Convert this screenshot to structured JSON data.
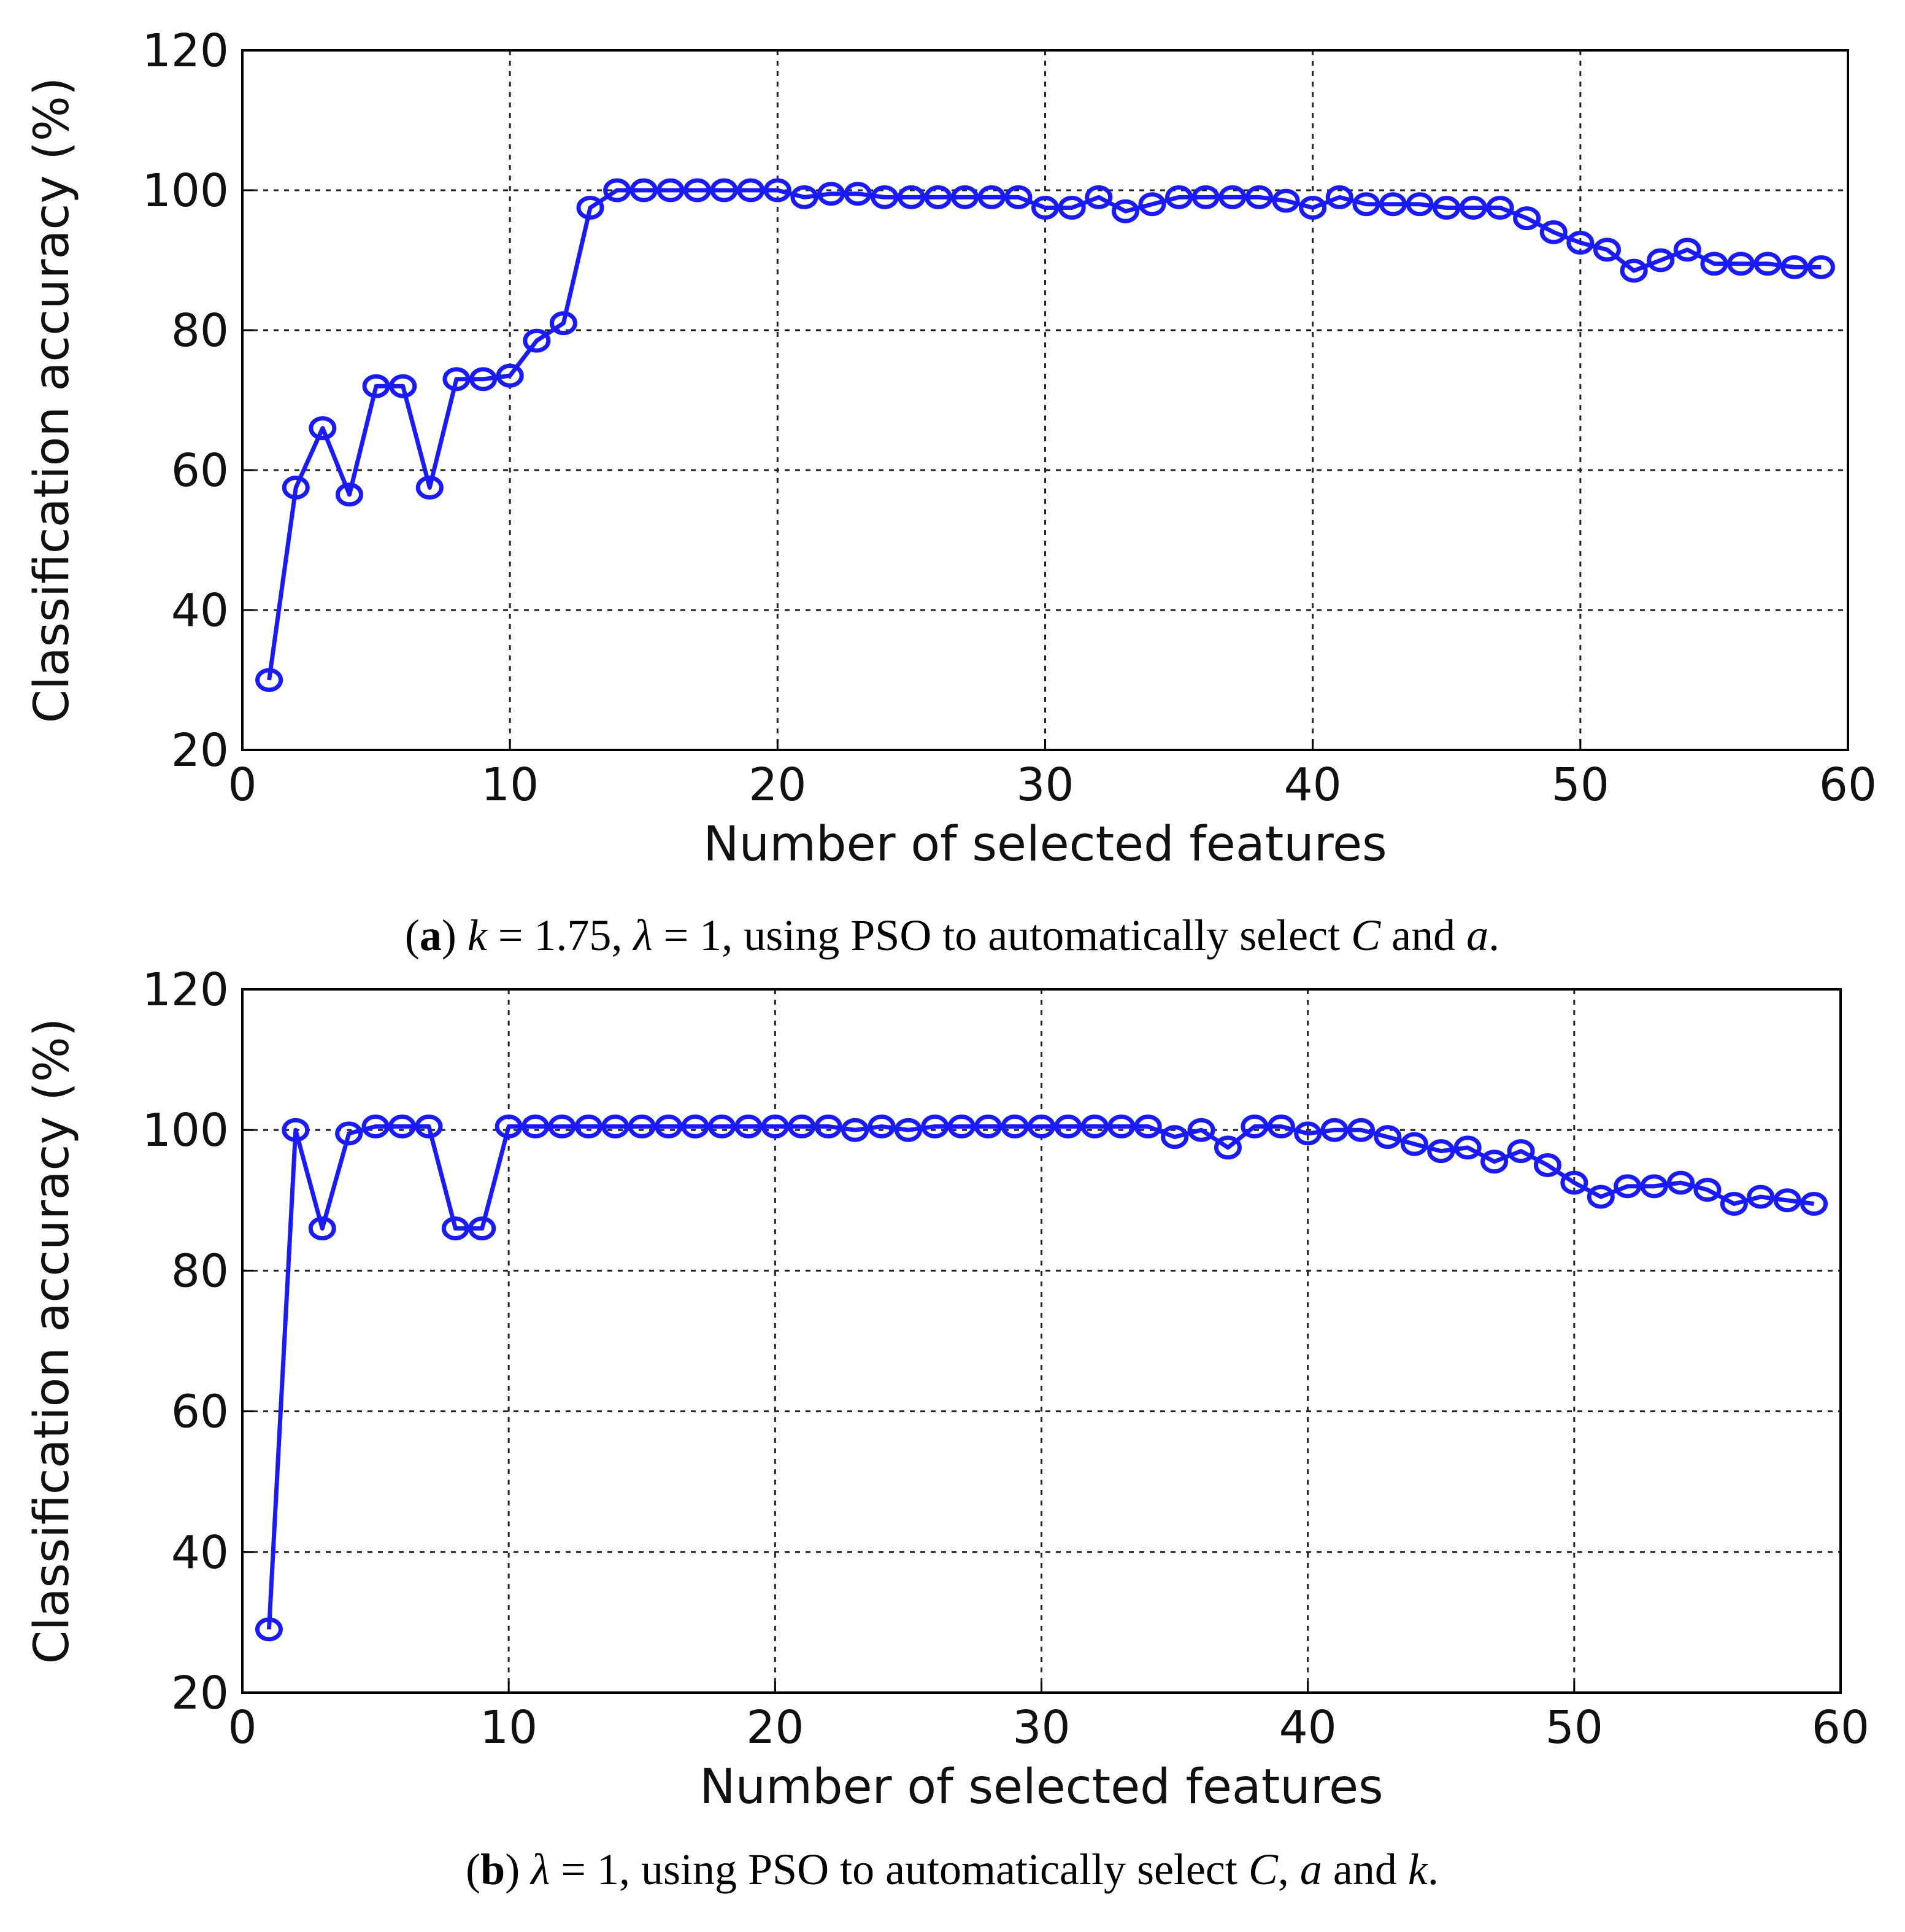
{
  "chart_data": [
    {
      "type": "line",
      "panel": "a",
      "xlabel": "Number of selected features",
      "ylabel": "Classification accuracy (%)",
      "xlim": [
        0,
        60
      ],
      "ylim": [
        20,
        120
      ],
      "xticks": [
        0,
        10,
        20,
        30,
        40,
        50,
        60
      ],
      "yticks": [
        20,
        40,
        60,
        80,
        100,
        120
      ],
      "grid": true,
      "marker": "circle",
      "line_color": "#1a1aff",
      "series": [
        {
          "name": "accuracy",
          "x": [
            1,
            2,
            3,
            4,
            5,
            6,
            7,
            8,
            9,
            10,
            11,
            12,
            13,
            14,
            15,
            16,
            17,
            18,
            19,
            20,
            21,
            22,
            23,
            24,
            25,
            26,
            27,
            28,
            29,
            30,
            31,
            32,
            33,
            34,
            35,
            36,
            37,
            38,
            39,
            40,
            41,
            42,
            43,
            44,
            45,
            46,
            47,
            48,
            49,
            50,
            51,
            52,
            53,
            54,
            55,
            56,
            57,
            58,
            59
          ],
          "values": [
            30,
            57.5,
            66,
            56.5,
            72,
            72,
            57.5,
            73,
            73,
            73.5,
            78.5,
            81,
            97.5,
            100,
            100,
            100,
            100,
            100,
            100,
            100,
            99,
            99.5,
            99.5,
            99,
            99,
            99,
            99,
            99,
            99,
            97.5,
            97.5,
            99,
            97,
            98,
            99,
            99,
            99,
            99,
            98.5,
            97.5,
            99,
            98,
            98,
            98,
            97.5,
            97.5,
            97.5,
            96,
            94,
            92.5,
            91.5,
            88.5,
            90,
            91.5,
            89.5,
            89.5,
            89.5,
            89,
            89
          ]
        }
      ],
      "caption": {
        "label": "a",
        "parts": [
          {
            "text": "k",
            "style": "italic"
          },
          {
            "text": " = 1.75, ",
            "style": "normal"
          },
          {
            "text": "λ",
            "style": "italic"
          },
          {
            "text": " = 1, using PSO to automatically select ",
            "style": "normal"
          },
          {
            "text": "C",
            "style": "italic"
          },
          {
            "text": " and ",
            "style": "normal"
          },
          {
            "text": "a",
            "style": "italic"
          },
          {
            "text": ".",
            "style": "normal"
          }
        ]
      }
    },
    {
      "type": "line",
      "panel": "b",
      "xlabel": "Number of selected features",
      "ylabel": "Classification accuracy (%)",
      "xlim": [
        0,
        60
      ],
      "ylim": [
        20,
        120
      ],
      "xticks": [
        0,
        10,
        20,
        30,
        40,
        50,
        60
      ],
      "yticks": [
        20,
        40,
        60,
        80,
        100,
        120
      ],
      "grid": true,
      "marker": "circle",
      "line_color": "#1a1aff",
      "series": [
        {
          "name": "accuracy",
          "x": [
            1,
            2,
            3,
            4,
            5,
            6,
            7,
            8,
            9,
            10,
            11,
            12,
            13,
            14,
            15,
            16,
            17,
            18,
            19,
            20,
            21,
            22,
            23,
            24,
            25,
            26,
            27,
            28,
            29,
            30,
            31,
            32,
            33,
            34,
            35,
            36,
            37,
            38,
            39,
            40,
            41,
            42,
            43,
            44,
            45,
            46,
            47,
            48,
            49,
            50,
            51,
            52,
            53,
            54,
            55,
            56,
            57,
            58,
            59
          ],
          "values": [
            29,
            100,
            86,
            99.5,
            100.5,
            100.5,
            100.5,
            86,
            86,
            100.5,
            100.5,
            100.5,
            100.5,
            100.5,
            100.5,
            100.5,
            100.5,
            100.5,
            100.5,
            100.5,
            100.5,
            100.5,
            100,
            100.5,
            100,
            100.5,
            100.5,
            100.5,
            100.5,
            100.5,
            100.5,
            100.5,
            100.5,
            100.5,
            99,
            100,
            97.5,
            100.5,
            100.5,
            99.5,
            100,
            100,
            99,
            98,
            97,
            97.5,
            95.5,
            97,
            95,
            92.5,
            90.5,
            92,
            92,
            92.5,
            91.5,
            89.5,
            90.5,
            90,
            89.5
          ]
        }
      ],
      "caption": {
        "label": "b",
        "parts": [
          {
            "text": "λ",
            "style": "italic"
          },
          {
            "text": " = 1, using PSO to automatically select ",
            "style": "normal"
          },
          {
            "text": "C",
            "style": "italic"
          },
          {
            "text": ", ",
            "style": "normal"
          },
          {
            "text": "a",
            "style": "italic"
          },
          {
            "text": " and ",
            "style": "normal"
          },
          {
            "text": "k",
            "style": "italic"
          },
          {
            "text": ".",
            "style": "normal"
          }
        ]
      }
    }
  ]
}
